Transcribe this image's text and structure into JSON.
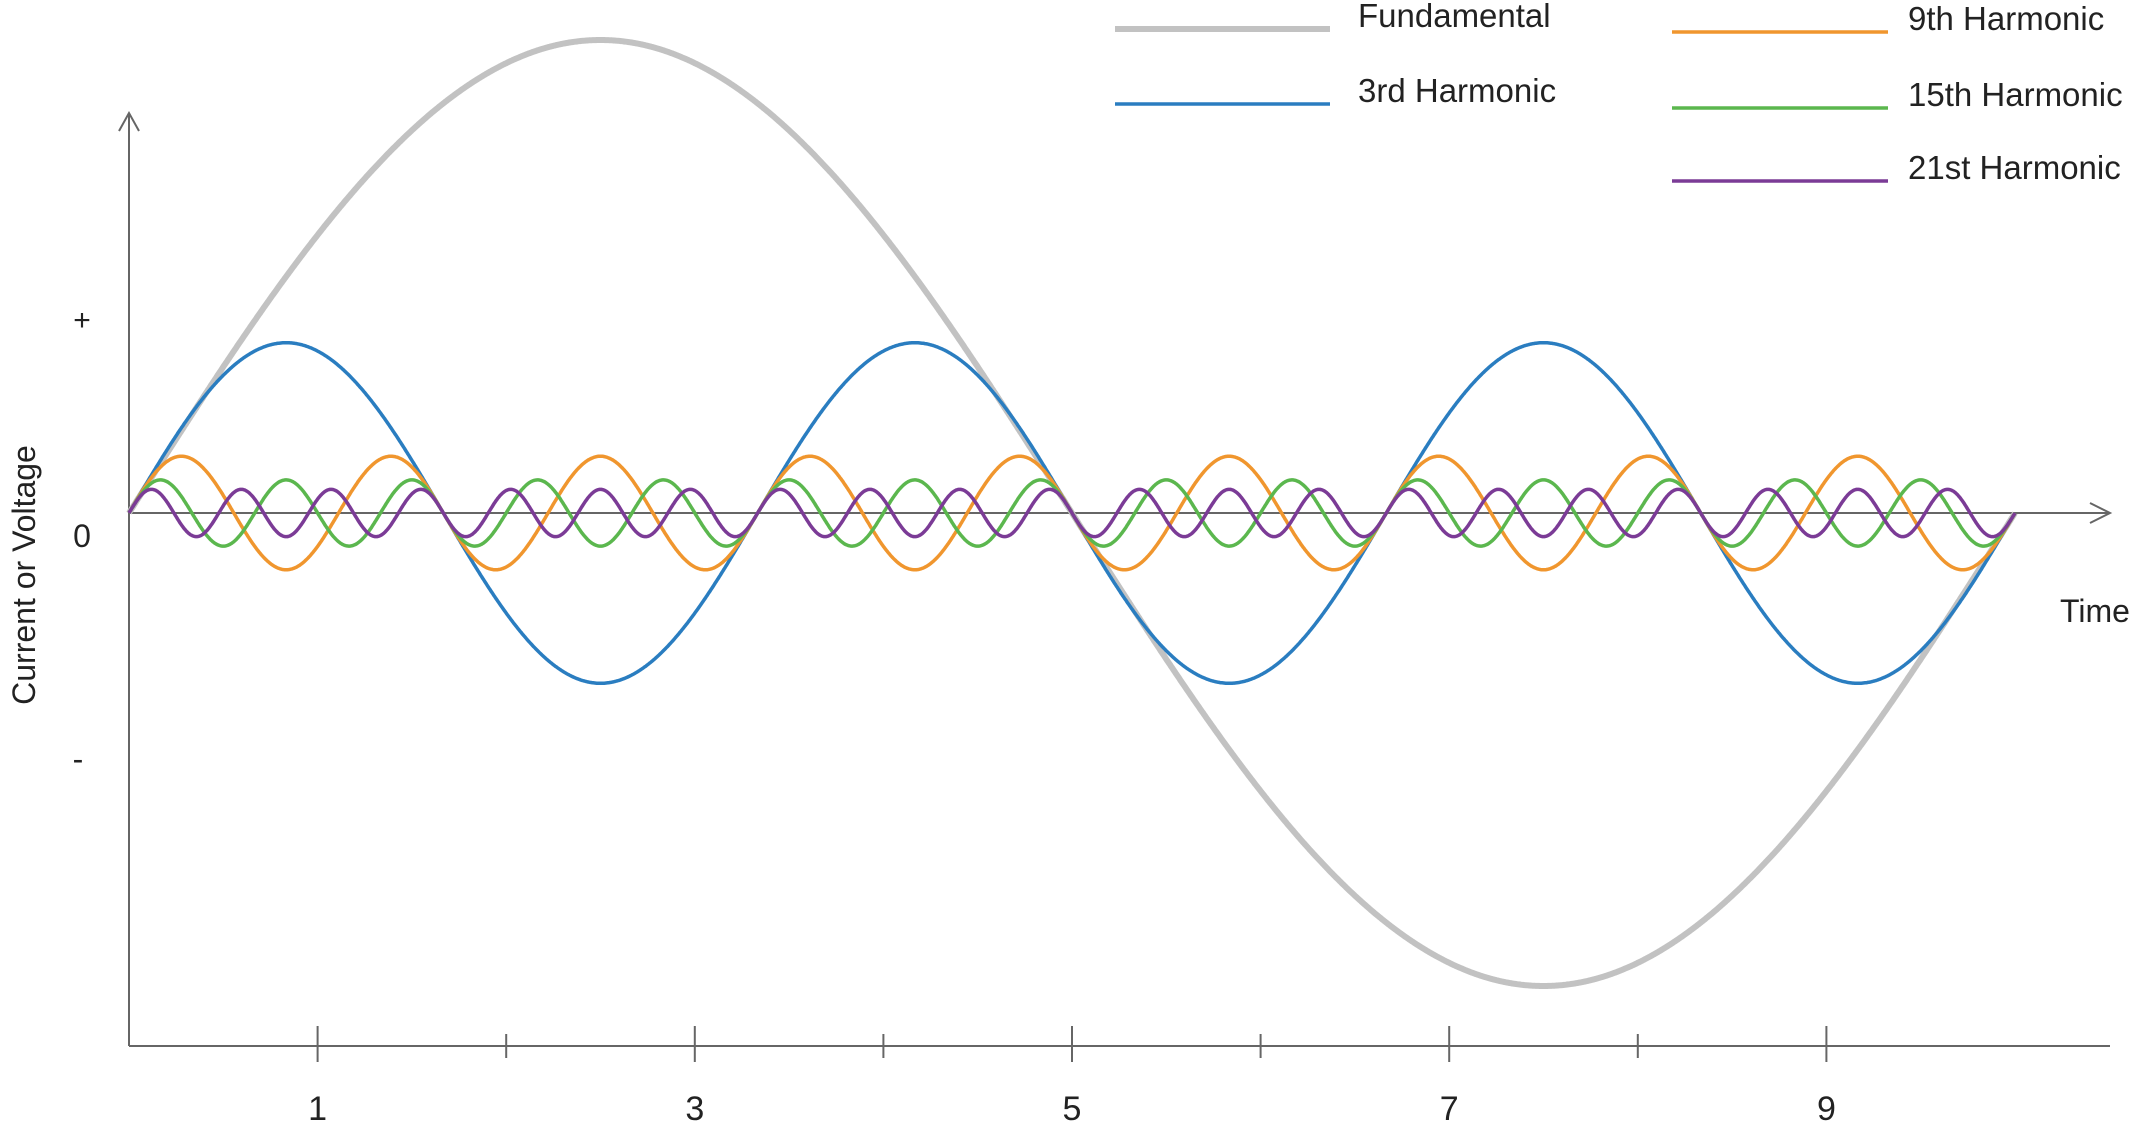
{
  "chart_data": {
    "type": "line",
    "title": "",
    "xlabel": "Time",
    "ylabel": "Current or Voltage",
    "y_tick_labels": [
      "+",
      "0",
      "-"
    ],
    "x_tick_labels": [
      "1",
      "3",
      "5",
      "7",
      "9"
    ],
    "xlim": [
      0,
      10
    ],
    "ylim": [
      -1,
      1
    ],
    "grid": false,
    "legend_position": "top-right",
    "series": [
      {
        "name": "Fundamental",
        "harmonic": 1,
        "amplitude": 1.0,
        "color": "#c2c2c2"
      },
      {
        "name": "3rd Harmonic",
        "harmonic": 3,
        "amplitude": 0.36,
        "color": "#2a7dc0"
      },
      {
        "name": "9th Harmonic",
        "harmonic": 9,
        "amplitude": 0.12,
        "color": "#f0962e"
      },
      {
        "name": "15th Harmonic",
        "harmonic": 15,
        "amplitude": 0.07,
        "color": "#5bb74e"
      },
      {
        "name": "21st Harmonic",
        "harmonic": 21,
        "amplitude": 0.05,
        "color": "#7b3b96"
      }
    ]
  }
}
